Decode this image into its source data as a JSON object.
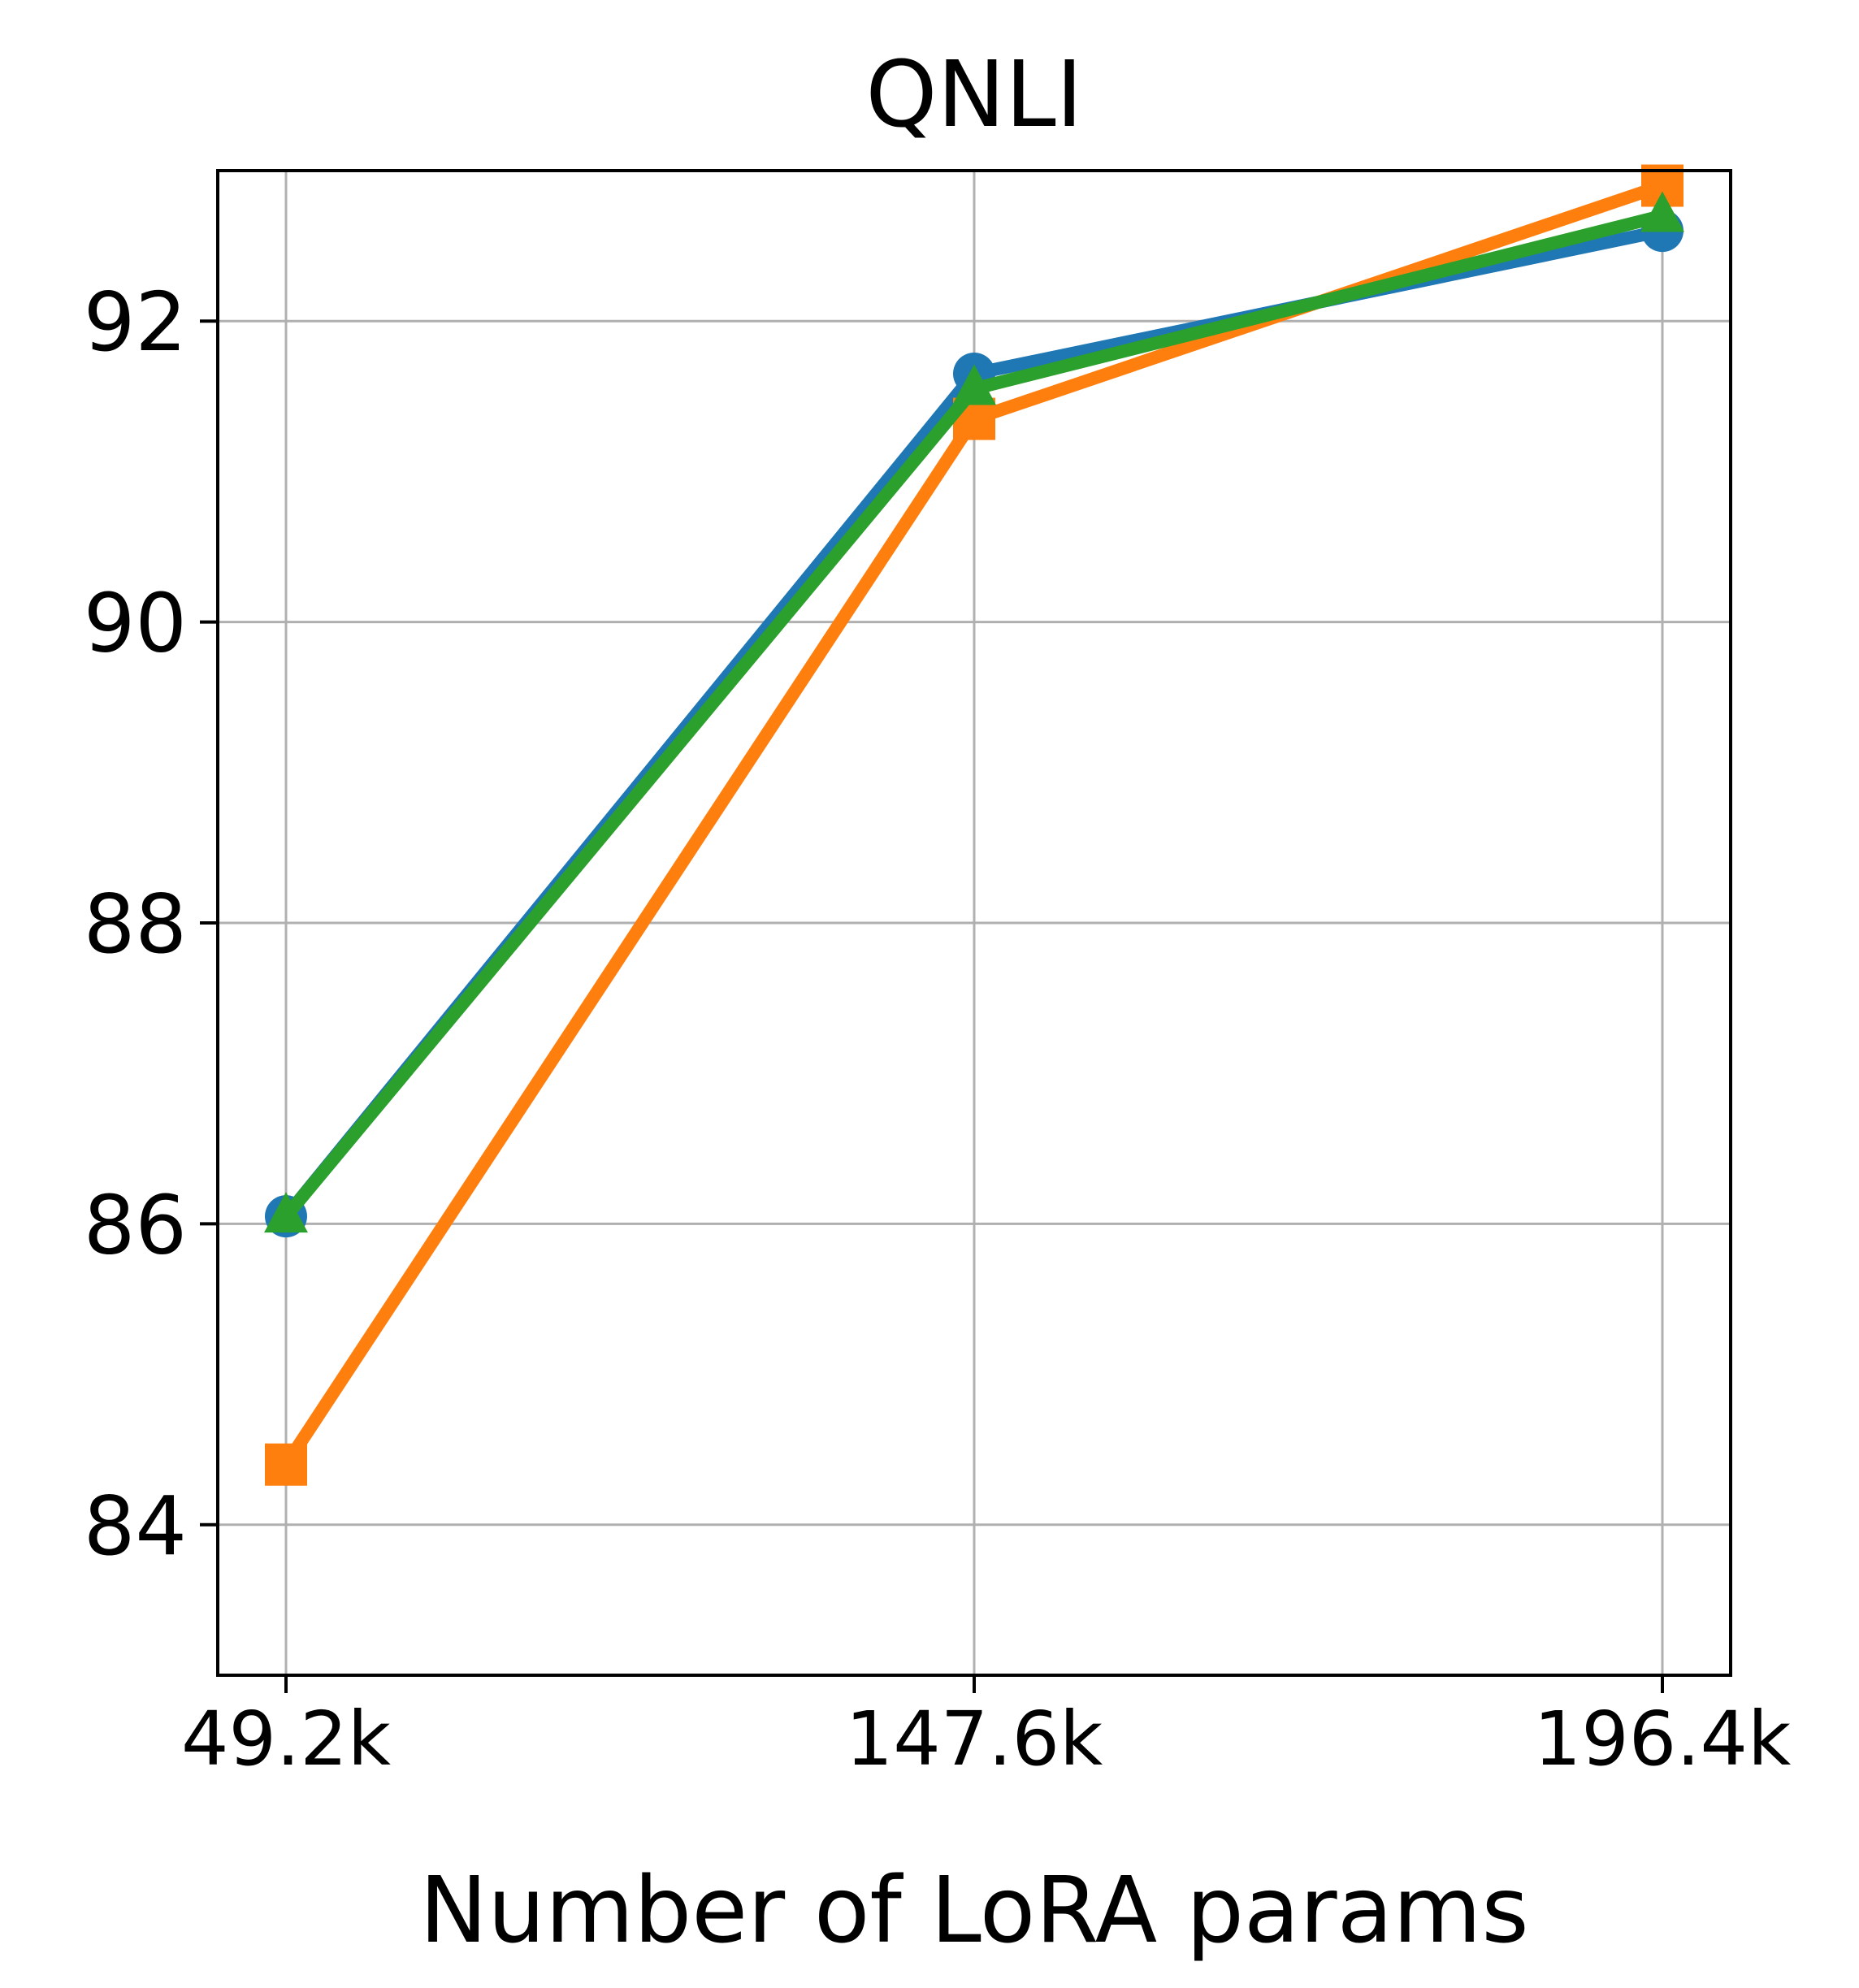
{
  "chart_data": {
    "type": "line",
    "title": "QNLI",
    "xlabel": "Number of LoRA params",
    "ylabel": "",
    "categories": [
      "49.2k",
      "147.6k",
      "196.4k"
    ],
    "yticks": [
      84,
      86,
      88,
      90,
      92
    ],
    "ylim": [
      83,
      93
    ],
    "grid": true,
    "legend": "none",
    "series": [
      {
        "color": "#1f77b4",
        "marker": "circle",
        "values": [
          86.05,
          91.65,
          92.6
        ]
      },
      {
        "color": "#ff7f0e",
        "marker": "square",
        "values": [
          84.4,
          91.35,
          92.9
        ]
      },
      {
        "color": "#2ca02c",
        "marker": "triangle",
        "values": [
          86.05,
          91.55,
          92.7
        ]
      }
    ]
  }
}
